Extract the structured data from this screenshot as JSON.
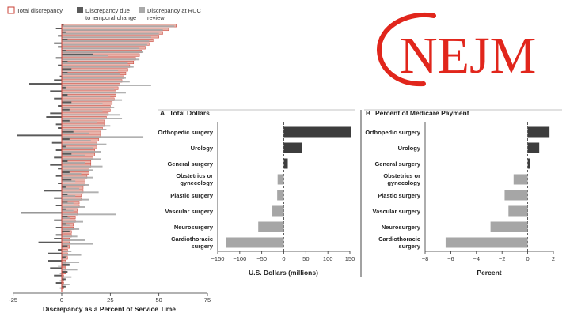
{
  "colors": {
    "total_fill": "#e8b3aa",
    "total_stroke": "#c93f33",
    "temporal": "#5a5a5a",
    "ruc": "#a9a9a9",
    "dark_bar": "#3d3d3d",
    "light_bar": "#a6a6a6",
    "logo_red": "#e1261c"
  },
  "logo": {
    "text": "NEJM"
  },
  "chart_data": [
    {
      "type": "bar",
      "orientation": "horizontal",
      "title": "",
      "xlabel": "Discrepancy as a Percent of Service Time",
      "xlim": [
        -25,
        75
      ],
      "xticks": [
        -25,
        0,
        25,
        50,
        75
      ],
      "legend": [
        "Total discrepancy",
        "Discrepancy due to temporal change",
        "Discrepancy at RUC review"
      ],
      "legend_placement": "top",
      "series": [
        {
          "name": "Total discrepancy",
          "values": [
            59,
            55,
            52,
            50,
            47,
            45,
            43,
            41,
            40,
            38,
            37,
            35,
            34,
            33,
            32,
            31,
            30,
            29,
            28,
            28,
            27,
            26,
            25,
            25,
            24,
            23,
            22,
            22,
            21,
            20,
            20,
            19,
            18,
            18,
            17,
            17,
            16,
            15,
            15,
            14,
            14,
            13,
            12,
            12,
            11,
            11,
            10,
            10,
            9,
            9,
            8,
            8,
            7,
            7,
            6,
            6,
            5,
            5,
            4,
            4,
            4,
            3,
            3,
            3,
            2,
            2,
            2,
            2,
            1,
            1,
            1,
            1
          ]
        },
        {
          "name": "Discrepancy due to temporal change",
          "values": [
            1,
            -3,
            2,
            -2,
            3,
            -4,
            -2,
            2,
            16,
            -3,
            3,
            -2,
            5,
            3,
            -1,
            -4,
            -17,
            2,
            -6,
            3,
            -4,
            5,
            -2,
            4,
            -6,
            -8,
            4,
            -3,
            -2,
            6,
            -23,
            4,
            -5,
            2,
            -3,
            5,
            -4,
            3,
            -6,
            -2,
            4,
            -3,
            5,
            -2,
            2,
            -9,
            3,
            -4,
            3,
            -3,
            2,
            -21,
            3,
            -4,
            2,
            -3,
            4,
            -3,
            -4,
            -12,
            3,
            -2,
            -7,
            2,
            -7,
            4,
            -6,
            3,
            -4,
            2,
            -3,
            2
          ]
        },
        {
          "name": "Discrepancy at RUC review",
          "values": [
            58,
            52,
            50,
            46,
            45,
            44,
            40,
            42,
            24,
            40,
            34,
            37,
            29,
            30,
            33,
            35,
            46,
            27,
            33,
            25,
            31,
            21,
            27,
            21,
            30,
            31,
            18,
            25,
            23,
            14,
            42,
            15,
            23,
            16,
            20,
            12,
            20,
            12,
            21,
            16,
            10,
            16,
            7,
            14,
            9,
            19,
            7,
            14,
            6,
            12,
            6,
            28,
            4,
            11,
            4,
            9,
            1,
            8,
            12,
            16,
            1,
            5,
            10,
            1,
            9,
            -2,
            8,
            -1,
            5,
            -1,
            4,
            -1
          ]
        }
      ]
    },
    {
      "type": "bar",
      "orientation": "horizontal",
      "panel_letter": "A",
      "title": "Total Dollars",
      "xlabel": "U.S. Dollars (millions)",
      "xlim": [
        -150,
        150
      ],
      "xticks": [
        -150,
        -100,
        -50,
        0,
        50,
        100,
        150
      ],
      "categories": [
        "Orthopedic surgery",
        "Urology",
        "General surgery",
        "Obstetrics or gynecology",
        "Plastic surgery",
        "Vascular surgery",
        "Neurosurgery",
        "Cardiothoracic surgery"
      ],
      "category_lines": [
        [
          "Orthopedic surgery"
        ],
        [
          "Urology"
        ],
        [
          "General surgery"
        ],
        [
          "Obstetrics or",
          "gynecology"
        ],
        [
          "Plastic surgery"
        ],
        [
          "Vascular surgery"
        ],
        [
          "Neurosurgery"
        ],
        [
          "Cardiothoracic",
          "surgery"
        ]
      ],
      "values": [
        152,
        42,
        9,
        -14,
        -15,
        -26,
        -58,
        -132
      ]
    },
    {
      "type": "bar",
      "orientation": "horizontal",
      "panel_letter": "B",
      "title": "Percent of Medicare Payment",
      "xlabel": "Percent",
      "xlim": [
        -8,
        2
      ],
      "xticks": [
        -8,
        -6,
        -4,
        -2,
        0,
        2
      ],
      "categories": [
        "Orthopedic surgery",
        "Urology",
        "General surgery",
        "Obstetrics or gynecology",
        "Plastic surgery",
        "Vascular surgery",
        "Neurosurgery",
        "Cardiothoracic surgery"
      ],
      "category_lines": [
        [
          "Orthopedic surgery"
        ],
        [
          "Urology"
        ],
        [
          "General surgery"
        ],
        [
          "Obstetrics or",
          "gynecology"
        ],
        [
          "Plastic surgery"
        ],
        [
          "Vascular surgery"
        ],
        [
          "Neurosurgery"
        ],
        [
          "Cardiothoracic",
          "surgery"
        ]
      ],
      "values": [
        1.7,
        0.9,
        0.15,
        -1.1,
        -1.8,
        -1.5,
        -2.9,
        -6.4
      ]
    }
  ]
}
